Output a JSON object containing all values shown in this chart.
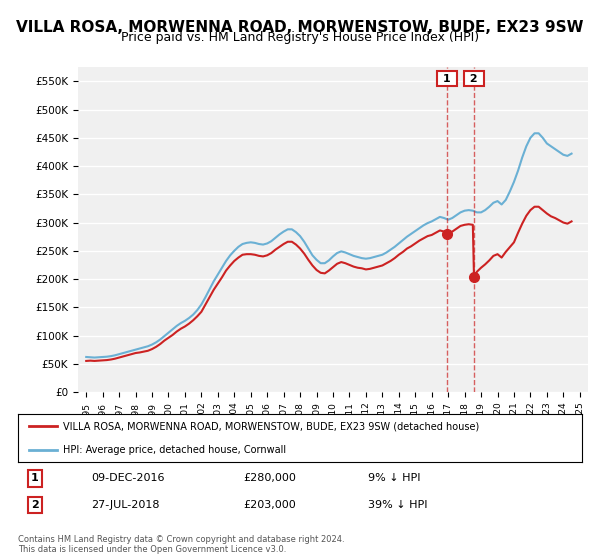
{
  "title": "VILLA ROSA, MORWENNA ROAD, MORWENSTOW, BUDE, EX23 9SW",
  "subtitle": "Price paid vs. HM Land Registry's House Price Index (HPI)",
  "title_fontsize": 11,
  "subtitle_fontsize": 9,
  "ylabel": "",
  "ylim": [
    0,
    575000
  ],
  "yticks": [
    0,
    50000,
    100000,
    150000,
    200000,
    250000,
    300000,
    350000,
    400000,
    450000,
    500000,
    550000
  ],
  "background_color": "#ffffff",
  "plot_bg_color": "#f0f0f0",
  "grid_color": "#ffffff",
  "hpi_color": "#6ab0d4",
  "price_color": "#cc2222",
  "sale1_date": 2016.94,
  "sale2_date": 2018.57,
  "sale1_price": 280000,
  "sale2_price": 203000,
  "legend_label1": "VILLA ROSA, MORWENNA ROAD, MORWENSTOW, BUDE, EX23 9SW (detached house)",
  "legend_label2": "HPI: Average price, detached house, Cornwall",
  "table_row1": [
    "1",
    "09-DEC-2016",
    "£280,000",
    "9% ↓ HPI"
  ],
  "table_row2": [
    "2",
    "27-JUL-2018",
    "£203,000",
    "39% ↓ HPI"
  ],
  "footnote": "Contains HM Land Registry data © Crown copyright and database right 2024.\nThis data is licensed under the Open Government Licence v3.0.",
  "hpi_data": {
    "years": [
      1995.0,
      1995.25,
      1995.5,
      1995.75,
      1996.0,
      1996.25,
      1996.5,
      1996.75,
      1997.0,
      1997.25,
      1997.5,
      1997.75,
      1998.0,
      1998.25,
      1998.5,
      1998.75,
      1999.0,
      1999.25,
      1999.5,
      1999.75,
      2000.0,
      2000.25,
      2000.5,
      2000.75,
      2001.0,
      2001.25,
      2001.5,
      2001.75,
      2002.0,
      2002.25,
      2002.5,
      2002.75,
      2003.0,
      2003.25,
      2003.5,
      2003.75,
      2004.0,
      2004.25,
      2004.5,
      2004.75,
      2005.0,
      2005.25,
      2005.5,
      2005.75,
      2006.0,
      2006.25,
      2006.5,
      2006.75,
      2007.0,
      2007.25,
      2007.5,
      2007.75,
      2008.0,
      2008.25,
      2008.5,
      2008.75,
      2009.0,
      2009.25,
      2009.5,
      2009.75,
      2010.0,
      2010.25,
      2010.5,
      2010.75,
      2011.0,
      2011.25,
      2011.5,
      2011.75,
      2012.0,
      2012.25,
      2012.5,
      2012.75,
      2013.0,
      2013.25,
      2013.5,
      2013.75,
      2014.0,
      2014.25,
      2014.5,
      2014.75,
      2015.0,
      2015.25,
      2015.5,
      2015.75,
      2016.0,
      2016.25,
      2016.5,
      2016.75,
      2017.0,
      2017.25,
      2017.5,
      2017.75,
      2018.0,
      2018.25,
      2018.5,
      2018.75,
      2019.0,
      2019.25,
      2019.5,
      2019.75,
      2020.0,
      2020.25,
      2020.5,
      2020.75,
      2021.0,
      2021.25,
      2021.5,
      2021.75,
      2022.0,
      2022.25,
      2022.5,
      2022.75,
      2023.0,
      2023.25,
      2023.5,
      2023.75,
      2024.0,
      2024.25,
      2024.5
    ],
    "values": [
      62000,
      61500,
      61000,
      61500,
      62000,
      62500,
      63500,
      65000,
      67000,
      69000,
      71000,
      73000,
      75000,
      77000,
      79000,
      81000,
      84000,
      88000,
      93000,
      99000,
      105000,
      111000,
      117000,
      122000,
      126000,
      131000,
      137000,
      145000,
      155000,
      168000,
      182000,
      196000,
      208000,
      220000,
      232000,
      242000,
      250000,
      257000,
      262000,
      264000,
      265000,
      264000,
      262000,
      261000,
      263000,
      267000,
      273000,
      279000,
      284000,
      288000,
      288000,
      283000,
      276000,
      266000,
      254000,
      242000,
      234000,
      228000,
      228000,
      233000,
      240000,
      246000,
      249000,
      247000,
      244000,
      241000,
      239000,
      237000,
      236000,
      237000,
      239000,
      241000,
      243000,
      247000,
      252000,
      257000,
      263000,
      269000,
      275000,
      280000,
      285000,
      290000,
      295000,
      299000,
      302000,
      306000,
      310000,
      308000,
      305000,
      308000,
      313000,
      318000,
      321000,
      322000,
      321000,
      318000,
      318000,
      322000,
      328000,
      335000,
      338000,
      332000,
      340000,
      355000,
      372000,
      392000,
      415000,
      435000,
      450000,
      458000,
      458000,
      450000,
      440000,
      435000,
      430000,
      425000,
      420000,
      418000,
      422000
    ]
  },
  "price_data": {
    "years": [
      1995.0,
      1995.25,
      1995.5,
      1995.75,
      1996.0,
      1996.25,
      1996.5,
      1996.75,
      1997.0,
      1997.25,
      1997.5,
      1997.75,
      1998.0,
      1998.25,
      1998.5,
      1998.75,
      1999.0,
      1999.25,
      1999.5,
      1999.75,
      2000.0,
      2000.25,
      2000.5,
      2000.75,
      2001.0,
      2001.25,
      2001.5,
      2001.75,
      2002.0,
      2002.25,
      2002.5,
      2002.75,
      2003.0,
      2003.25,
      2003.5,
      2003.75,
      2004.0,
      2004.25,
      2004.5,
      2004.75,
      2005.0,
      2005.25,
      2005.5,
      2005.75,
      2006.0,
      2006.25,
      2006.5,
      2006.75,
      2007.0,
      2007.25,
      2007.5,
      2007.75,
      2008.0,
      2008.25,
      2008.5,
      2008.75,
      2009.0,
      2009.25,
      2009.5,
      2009.75,
      2010.0,
      2010.25,
      2010.5,
      2010.75,
      2011.0,
      2011.25,
      2011.5,
      2011.75,
      2012.0,
      2012.25,
      2012.5,
      2012.75,
      2013.0,
      2013.25,
      2013.5,
      2013.75,
      2014.0,
      2014.25,
      2014.5,
      2014.75,
      2015.0,
      2015.25,
      2015.5,
      2015.75,
      2016.0,
      2016.25,
      2016.5,
      2016.75,
      2016.94,
      2017.0,
      2017.25,
      2017.5,
      2017.75,
      2018.0,
      2018.25,
      2018.5,
      2018.57,
      2018.75,
      2019.0,
      2019.25,
      2019.5,
      2019.75,
      2020.0,
      2020.25,
      2020.5,
      2021.0,
      2021.25,
      2021.5,
      2021.75,
      2022.0,
      2022.25,
      2022.5,
      2022.75,
      2023.0,
      2023.25,
      2023.5,
      2023.75,
      2024.0,
      2024.25,
      2024.5
    ],
    "values": [
      55000,
      55500,
      55000,
      55500,
      56000,
      56500,
      57500,
      59000,
      61000,
      63000,
      65000,
      67000,
      69000,
      70000,
      71500,
      73000,
      76000,
      80000,
      85000,
      91000,
      96000,
      101000,
      107000,
      112000,
      116000,
      121000,
      127000,
      134000,
      142000,
      155000,
      168000,
      181000,
      192000,
      203000,
      215000,
      224000,
      232000,
      238000,
      243000,
      244000,
      244000,
      243000,
      241000,
      240000,
      242000,
      246000,
      252000,
      257000,
      262000,
      266000,
      266000,
      261000,
      254000,
      245000,
      234000,
      224000,
      216000,
      211000,
      210000,
      215000,
      221000,
      227000,
      230000,
      228000,
      225000,
      222000,
      220000,
      219000,
      217000,
      218000,
      220000,
      222000,
      224000,
      228000,
      232000,
      237000,
      243000,
      248000,
      254000,
      258000,
      263000,
      268000,
      272000,
      276000,
      278000,
      282000,
      286000,
      284000,
      280000,
      281000,
      284000,
      289000,
      294000,
      296000,
      297000,
      296000,
      203000,
      213000,
      220000,
      226000,
      233000,
      241000,
      244000,
      238000,
      248000,
      265000,
      282000,
      298000,
      312000,
      322000,
      328000,
      328000,
      322000,
      316000,
      311000,
      308000,
      304000,
      300000,
      298000,
      302000
    ]
  }
}
